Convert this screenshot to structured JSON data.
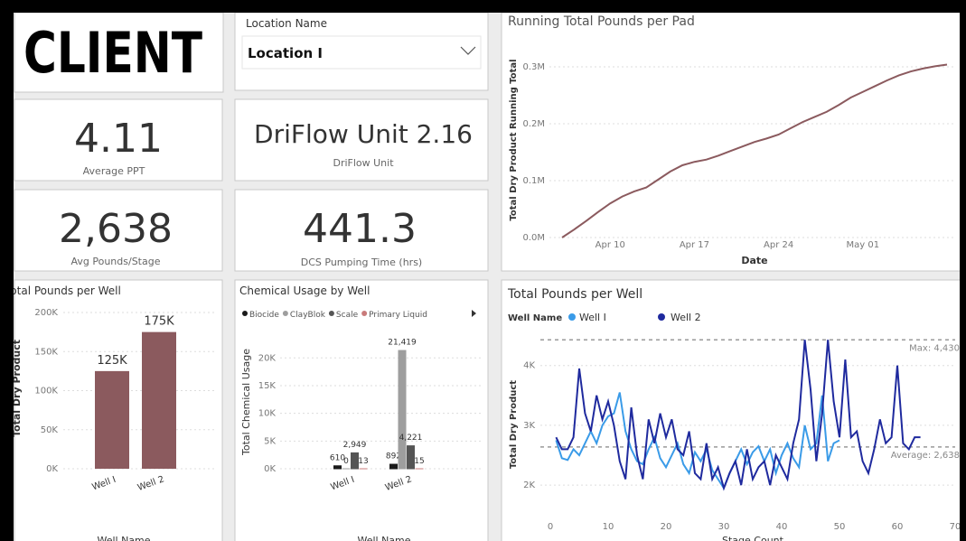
{
  "logo": "CLIENT",
  "slicer": {
    "label": "Location Name",
    "selected": "Location I"
  },
  "kpis": [
    {
      "value": 4.11,
      "label": "Average PPT"
    },
    {
      "value": "DriFlow Unit 2.16",
      "label": "DriFlow Unit"
    },
    {
      "value": "2,638",
      "label": "Avg Pounds/Stage"
    },
    {
      "value": 441.3,
      "label": "DCS Pumping Time (hrs)"
    }
  ],
  "chart_data": [
    {
      "type": "line",
      "title": "Running Total Pounds per Pad",
      "x_label": "Date",
      "y_label": "Total Dry Product Running Total",
      "color": "#8b5a5e",
      "grid": true,
      "x": [
        "Apr 06",
        "Apr 07",
        "Apr 08",
        "Apr 09",
        "Apr 10",
        "Apr 11",
        "Apr 12",
        "Apr 13",
        "Apr 14",
        "Apr 15",
        "Apr 16",
        "Apr 17",
        "Apr 18",
        "Apr 19",
        "Apr 20",
        "Apr 21",
        "Apr 22",
        "Apr 23",
        "Apr 24",
        "Apr 25",
        "Apr 26",
        "Apr 27",
        "Apr 28",
        "Apr 29",
        "Apr 30",
        "May 01",
        "May 02",
        "May 03",
        "May 04",
        "May 05",
        "May 06",
        "May 07",
        "May 08"
      ],
      "values": [
        0,
        14000,
        29000,
        45000,
        60000,
        72000,
        81000,
        88000,
        102000,
        116000,
        127000,
        133000,
        137000,
        144000,
        152000,
        160000,
        168000,
        174000,
        181000,
        192000,
        203000,
        212000,
        221000,
        233000,
        246000,
        256000,
        266000,
        276000,
        285000,
        292000,
        297000,
        301000,
        304000
      ],
      "xticks": [
        "Apr 10",
        "Apr 17",
        "Apr 24",
        "May 01"
      ],
      "ylim": [
        0,
        320000
      ],
      "yticks": [
        {
          "value": 0,
          "label": "0.0M"
        },
        {
          "value": 100000,
          "label": "0.1M"
        },
        {
          "value": 200000,
          "label": "0.2M"
        },
        {
          "value": 300000,
          "label": "0.3M"
        }
      ]
    },
    {
      "type": "bar",
      "title": "Total Pounds per Well",
      "x_label": "Well Name",
      "y_label": "Total Dry Product",
      "color": "#8b5a5e",
      "grid": true,
      "categories": [
        "Well I",
        "Well 2"
      ],
      "values": [
        125000,
        175000
      ],
      "value_labels": [
        "125K",
        "175K"
      ],
      "ylim": [
        0,
        200000
      ],
      "yticks": [
        {
          "value": 0,
          "label": "0K"
        },
        {
          "value": 50000,
          "label": "50K"
        },
        {
          "value": 100000,
          "label": "100K"
        },
        {
          "value": 150000,
          "label": "150K"
        },
        {
          "value": 200000,
          "label": "200K"
        }
      ]
    },
    {
      "type": "grouped-bar",
      "title": "Chemical Usage by Well",
      "x_label": "Well Name",
      "y_label": "Total Chemical Usage",
      "grid": true,
      "categories": [
        "Well I",
        "Well 2"
      ],
      "series": [
        {
          "name": "Biocide",
          "color": "#1a1a1a",
          "values": [
            610,
            892
          ]
        },
        {
          "name": "ClayBlok",
          "color": "#9e9e9e",
          "values": [
            0,
            21419
          ],
          "value_labels": [
            "0",
            "21,419"
          ]
        },
        {
          "name": "Scale",
          "color": "#555555",
          "values": [
            2949,
            4221
          ],
          "value_labels": [
            "2,949",
            "4,221"
          ]
        },
        {
          "name": "Primary Liquid",
          "color": "#c97b7b",
          "values": [
            13,
            15
          ]
        }
      ],
      "ylim": [
        0,
        22000
      ],
      "yticks": [
        {
          "value": 0,
          "label": "0K"
        },
        {
          "value": 5000,
          "label": "5K"
        },
        {
          "value": 10000,
          "label": "10K"
        },
        {
          "value": 15000,
          "label": "15K"
        },
        {
          "value": 20000,
          "label": "20K"
        }
      ]
    },
    {
      "type": "line",
      "title": "Total Pounds per Well",
      "legend_title": "Well Name",
      "x_label": "Stage Count",
      "y_label": "Total Dry Product",
      "grid": true,
      "series": [
        {
          "name": "Well I",
          "color": "#3a9be8",
          "x": [
            1,
            2,
            3,
            4,
            5,
            6,
            7,
            8,
            9,
            10,
            11,
            12,
            13,
            14,
            15,
            16,
            17,
            18,
            19,
            20,
            21,
            22,
            23,
            24,
            25,
            26,
            27,
            28,
            29,
            30,
            31,
            32,
            33,
            34,
            35,
            36,
            37,
            38,
            39,
            40,
            41,
            42,
            43,
            44,
            45,
            46,
            47,
            48,
            49,
            50
          ],
          "values": [
            2750,
            2450,
            2420,
            2600,
            2500,
            2700,
            2900,
            2700,
            3000,
            3150,
            3200,
            3550,
            2900,
            2600,
            2400,
            2350,
            2600,
            2800,
            2450,
            2300,
            2500,
            2700,
            2350,
            2200,
            2550,
            2400,
            2600,
            2250,
            2100,
            1950,
            2200,
            2400,
            2600,
            2350,
            2550,
            2650,
            2400,
            2600,
            2200,
            2500,
            2700,
            2450,
            2300,
            3000,
            2600,
            2700,
            3500,
            2400,
            2700,
            2750
          ]
        },
        {
          "name": "Well 2",
          "color": "#1f2a9e",
          "x": [
            1,
            2,
            3,
            4,
            5,
            6,
            7,
            8,
            9,
            10,
            11,
            12,
            13,
            14,
            15,
            16,
            17,
            18,
            19,
            20,
            21,
            22,
            23,
            24,
            25,
            26,
            27,
            28,
            29,
            30,
            31,
            32,
            33,
            34,
            35,
            36,
            37,
            38,
            39,
            40,
            41,
            42,
            43,
            44,
            45,
            46,
            47,
            48,
            49,
            50,
            51,
            52,
            53,
            54,
            55,
            56,
            57,
            58,
            59,
            60,
            61,
            62,
            63,
            64
          ],
          "values": [
            2800,
            2600,
            2600,
            2800,
            3950,
            3200,
            2900,
            3500,
            3100,
            3400,
            3000,
            2400,
            2100,
            3300,
            2500,
            2100,
            3100,
            2700,
            3200,
            2800,
            3100,
            2600,
            2500,
            2900,
            2200,
            2100,
            2700,
            2100,
            2300,
            1950,
            2200,
            2400,
            2000,
            2600,
            2100,
            2300,
            2400,
            2000,
            2500,
            2300,
            2100,
            2700,
            3100,
            4430,
            3600,
            2400,
            3200,
            4430,
            3400,
            2800,
            4100,
            2800,
            2900,
            2400,
            2200,
            2600,
            3100,
            2700,
            2800,
            4000,
            2700,
            2600,
            2800,
            2800
          ]
        }
      ],
      "annotations": [
        {
          "label": "Max: 4,430",
          "value": 4430
        },
        {
          "label": "Average: 2,638",
          "value": 2638
        }
      ],
      "xlim": [
        0,
        70
      ],
      "xticks": [
        0,
        10,
        20,
        30,
        40,
        50,
        60,
        70
      ],
      "ylim": [
        1700,
        4600
      ],
      "yticks": [
        {
          "value": 2000,
          "label": "2K"
        },
        {
          "value": 3000,
          "label": "3K"
        },
        {
          "value": 4000,
          "label": "4K"
        }
      ]
    }
  ]
}
